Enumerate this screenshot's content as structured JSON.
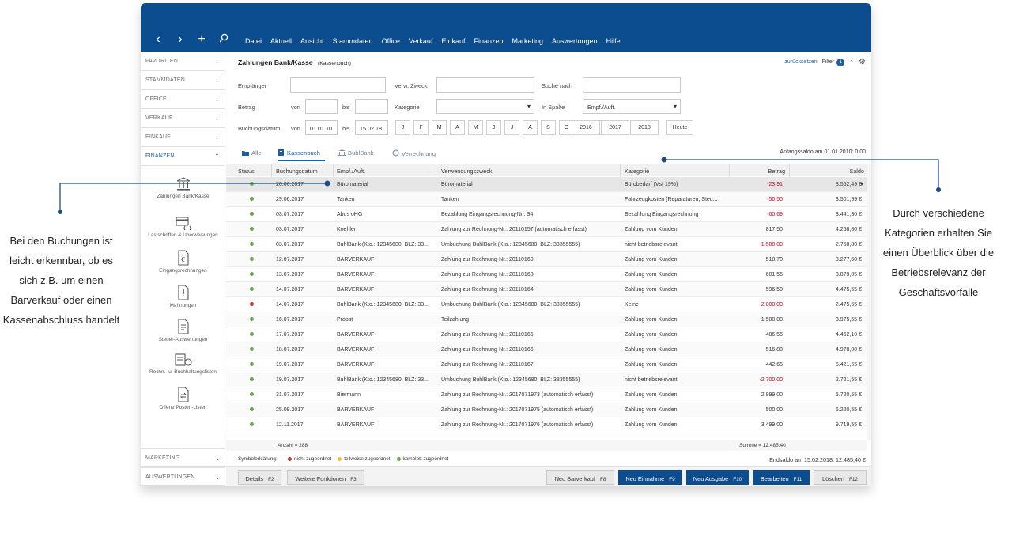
{
  "menu": [
    "Datei",
    "Aktuell",
    "Ansicht",
    "Stammdaten",
    "Office",
    "Verkauf",
    "Einkauf",
    "Finanzen",
    "Marketing",
    "Auswertungen",
    "Hilfe"
  ],
  "sidebar": {
    "sections_top": [
      {
        "label": "FAVORITEN"
      },
      {
        "label": "STAMMDATEN"
      },
      {
        "label": "OFFICE"
      },
      {
        "label": "VERKAUF"
      },
      {
        "label": "EINKAUF"
      },
      {
        "label": "FINANZEN",
        "active": true
      }
    ],
    "items": [
      {
        "label": "Zahlungen Bank/Kasse",
        "icon": "bank-icon"
      },
      {
        "label": "Lastschriften & Überweisungen",
        "icon": "card-transfer-icon"
      },
      {
        "label": "Eingangsrechnungen",
        "icon": "invoice-euro-icon"
      },
      {
        "label": "Mahnungen",
        "icon": "reminder-icon"
      },
      {
        "label": "Steuer-Auswertungen",
        "icon": "tax-report-icon"
      },
      {
        "label": "Rechn.- u. Buchhaltungslisten",
        "icon": "accounting-lists-icon"
      },
      {
        "label": "Offene Posten-Listen",
        "icon": "open-items-icon"
      }
    ],
    "sections_bottom": [
      {
        "label": "MARKETING"
      },
      {
        "label": "AUSWERTUNGEN"
      }
    ]
  },
  "header": {
    "title": "Zahlungen Bank/Kasse",
    "subtitle": "(Kassenbuch)",
    "reset": "zurücksetzen",
    "filter": "Filter",
    "filter_count": "1"
  },
  "filters": {
    "empfaenger": "Empfänger",
    "verw_zweck": "Verw. Zweck",
    "suche_nach": "Suche nach",
    "betrag": "Betrag",
    "von": "von",
    "bis": "bis",
    "kategorie": "Kategorie",
    "in_spalte": "In Spalte",
    "in_spalte_value": "Empf./Auft.",
    "buchungsdatum": "Buchungsdatum",
    "date_from": "01.01.10",
    "date_to": "15.02.18",
    "months": [
      "J",
      "F",
      "M",
      "A",
      "M",
      "J",
      "J",
      "A",
      "S",
      "O",
      "N",
      "D"
    ],
    "years": [
      "2016",
      "2017",
      "2018"
    ],
    "today": "Heute"
  },
  "tabs": [
    {
      "label": "Alle"
    },
    {
      "label": "Kassenbuch",
      "active": true
    },
    {
      "label": "BuhlBank"
    },
    {
      "label": "Verrechnung"
    }
  ],
  "opening_balance": "Anfangssaldo am 01.01.2010: 0,00",
  "columns": [
    "Status",
    "Buchungsdatum",
    "Empf./Auft.",
    "Verwendungszweck",
    "Kategorie",
    "Betrag",
    "Saldo"
  ],
  "rows": [
    {
      "status": "green",
      "date": "26.06.2017",
      "payee": "Büromaterial",
      "purpose": "Büromaterial",
      "category": "Bürobedarf (Vst 19%)",
      "amount": "-23,91",
      "neg": true,
      "balance": "3.552,49 €"
    },
    {
      "status": "green",
      "date": "29.06.2017",
      "payee": "Tanken",
      "purpose": "Tanken",
      "category": "Fahrzeugkosten (Reparaturen, Steu...",
      "amount": "-50,50",
      "neg": true,
      "balance": "3.501,99 €"
    },
    {
      "status": "green",
      "date": "03.07.2017",
      "payee": "Abus oHG",
      "purpose": "Bezahlung Eingangsrechnung-Nr.: 94",
      "category": "Bezahlung Eingangsrechnung",
      "amount": "-60,69",
      "neg": true,
      "balance": "3.441,30 €"
    },
    {
      "status": "green",
      "date": "03.07.2017",
      "payee": "Koehler",
      "purpose": "Zahlung zur Rechnung-Nr.: 20110157 (automatisch erfasst)",
      "category": "Zahlung vom Kunden",
      "amount": "817,50",
      "neg": false,
      "balance": "4.258,80 €"
    },
    {
      "status": "green",
      "date": "03.07.2017",
      "payee": "BuhlBank (Kto.: 12345680, BLZ: 33...",
      "purpose": "Umbuchung BuhlBank (Kto.: 12345680, BLZ: 33355555)",
      "category": "nicht betriebsrelevant",
      "amount": "-1.500,00",
      "neg": true,
      "balance": "2.758,80 €"
    },
    {
      "status": "green",
      "date": "12.07.2017",
      "payee": "BARVERKAUF",
      "purpose": "Zahlung zur Rechnung-Nr.: 20110160",
      "category": "Zahlung vom Kunden",
      "amount": "518,70",
      "neg": false,
      "balance": "3.277,50 €"
    },
    {
      "status": "green",
      "date": "13.07.2017",
      "payee": "BARVERKAUF",
      "purpose": "Zahlung zur Rechnung-Nr.: 20110163",
      "category": "Zahlung vom Kunden",
      "amount": "601,55",
      "neg": false,
      "balance": "3.879,05 €"
    },
    {
      "status": "green",
      "date": "14.07.2017",
      "payee": "BARVERKAUF",
      "purpose": "Zahlung zur Rechnung-Nr.: 20110164",
      "category": "Zahlung vom Kunden",
      "amount": "596,50",
      "neg": false,
      "balance": "4.475,55 €"
    },
    {
      "status": "red",
      "date": "14.07.2017",
      "payee": "BuhlBank (Kto.: 12345680, BLZ: 33...",
      "purpose": "Umbuchung BuhlBank (Kto.: 12345680, BLZ: 33355555)",
      "category": "Keine",
      "amount": "-2.000,00",
      "neg": true,
      "balance": "2.475,55 €"
    },
    {
      "status": "green",
      "date": "16.07.2017",
      "payee": "Propst",
      "purpose": "Teilzahlung",
      "category": "Zahlung vom Kunden",
      "amount": "1.500,00",
      "neg": false,
      "balance": "3.975,55 €"
    },
    {
      "status": "green",
      "date": "17.07.2017",
      "payee": "BARVERKAUF",
      "purpose": "Zahlung zur Rechnung-Nr.: 20110165",
      "category": "Zahlung vom Kunden",
      "amount": "486,55",
      "neg": false,
      "balance": "4.462,10 €"
    },
    {
      "status": "green",
      "date": "18.07.2017",
      "payee": "BARVERKAUF",
      "purpose": "Zahlung zur Rechnung-Nr.: 20110166",
      "category": "Zahlung vom Kunden",
      "amount": "516,80",
      "neg": false,
      "balance": "4.978,90 €"
    },
    {
      "status": "green",
      "date": "19.07.2017",
      "payee": "BARVERKAUF",
      "purpose": "Zahlung zur Rechnung-Nr.: 20110167",
      "category": "Zahlung vom Kunden",
      "amount": "442,65",
      "neg": false,
      "balance": "5.421,55 €"
    },
    {
      "status": "green",
      "date": "19.07.2017",
      "payee": "BuhlBank (Kto.: 12345680, BLZ: 33...",
      "purpose": "Umbuchung BuhlBank (Kto.: 12345680, BLZ: 33355555)",
      "category": "nicht betriebsrelevant",
      "amount": "-2.700,00",
      "neg": true,
      "balance": "2.721,55 €"
    },
    {
      "status": "green",
      "date": "31.07.2017",
      "payee": "Biermann",
      "purpose": "Zahlung zur Rechnung-Nr.: 2017071973 (automatisch erfasst)",
      "category": "Zahlung vom Kunden",
      "amount": "2.999,00",
      "neg": false,
      "balance": "5.720,55 €"
    },
    {
      "status": "green",
      "date": "25.09.2017",
      "payee": "BARVERKAUF",
      "purpose": "Zahlung zur Rechnung-Nr.: 2017071975 (automatisch erfasst)",
      "category": "Zahlung vom Kunden",
      "amount": "500,00",
      "neg": false,
      "balance": "6.220,55 €"
    },
    {
      "status": "green",
      "date": "12.11.2017",
      "payee": "BARVERKAUF",
      "purpose": "Zahlung zur Rechnung-Nr.: 2017071976 (automatisch erfasst)",
      "category": "Zahlung vom Kunden",
      "amount": "3.499,00",
      "neg": false,
      "balance": "9.719,55 €"
    }
  ],
  "summary": {
    "count": "Anzahl = 288",
    "sum": "Summe = 12.485,40"
  },
  "legend": {
    "title": "Symbolerklärung:",
    "items": [
      {
        "label": "nicht zugeordnet",
        "color": "#c0392b"
      },
      {
        "label": "teilweise zugeordnet",
        "color": "#f1c232"
      },
      {
        "label": "komplett zugeordnet",
        "color": "#6aa84f"
      }
    ]
  },
  "closing_balance": "Endsaldo am 15.02.2018: 12.485,40 €",
  "buttons": [
    {
      "label": "Details",
      "key": "F2"
    },
    {
      "label": "Weitere Funktionen",
      "key": "F3"
    },
    {
      "label": "Neu Barverkauf",
      "key": "F8"
    },
    {
      "label": "Neu Einnahme",
      "key": "F9"
    },
    {
      "label": "Neu Ausgabe",
      "key": "F10"
    },
    {
      "label": "Bearbeiten",
      "key": "F11"
    },
    {
      "label": "Löschen",
      "key": "F12"
    }
  ],
  "callouts": {
    "left": "Bei den Buchungen ist leicht erkennbar, ob es sich z.B. um einen Barverkauf oder einen Kassenabschluss handelt",
    "right": "Durch verschiedene Kategorien erhalten Sie einen Überblick über die Betriebsrelevanz der Geschäftsvorfälle"
  },
  "colors": {
    "brand": "#0c4d8f",
    "accent": "#1d5ea5",
    "negative": "#d0021b",
    "status_green": "#6aa84f",
    "status_red": "#c0392b"
  }
}
